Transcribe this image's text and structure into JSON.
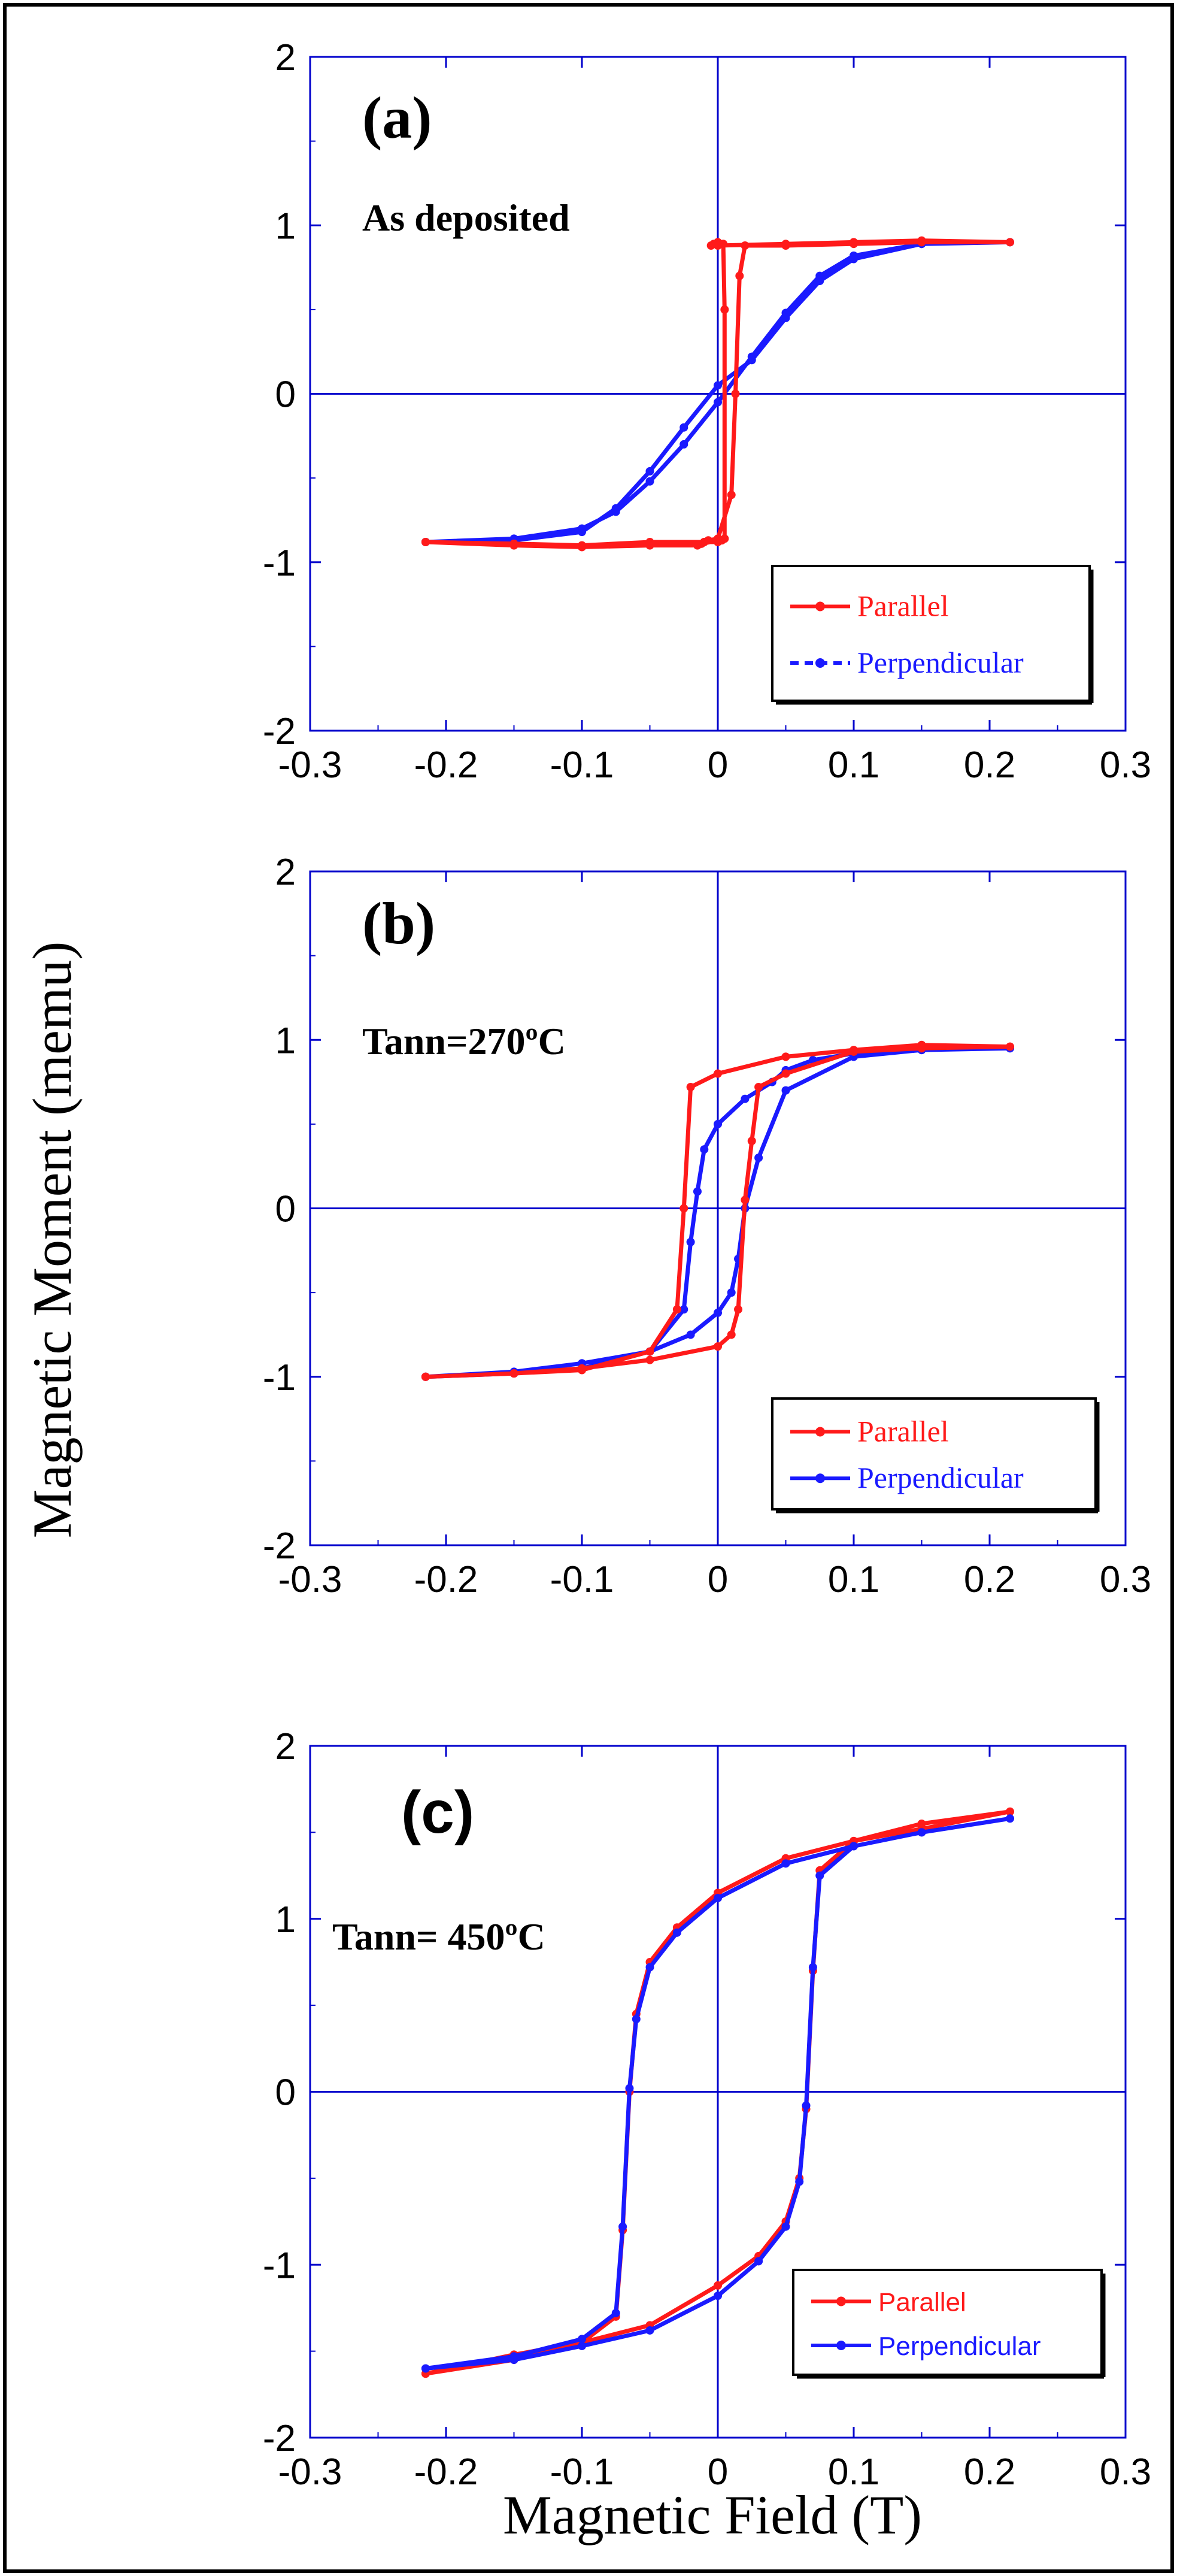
{
  "figure": {
    "ylabel": "Magnetic Moment (memu)",
    "xlabel": "Magnetic Field (T)"
  },
  "colors": {
    "parallel": "#ff1a1a",
    "perpendicular": "#1a1aff",
    "zero_line": "#0000cc",
    "frame": "#000000"
  },
  "chart_data": [
    {
      "type": "line",
      "panel": "(a)",
      "annotation": "As deposited",
      "xlim": [
        -0.3,
        0.3
      ],
      "ylim": [
        -2,
        2
      ],
      "xticks": [
        "-0.3",
        "-0.2",
        "-0.1",
        "0",
        "0.1",
        "0.2",
        "0.3"
      ],
      "yticks": [
        "2",
        "1",
        "0",
        "-1",
        "-2"
      ],
      "grid": false,
      "legend_position": "bottom-right",
      "series": [
        {
          "name": "Parallel",
          "color_key": "parallel",
          "x": [
            -0.215,
            -0.15,
            -0.1,
            -0.05,
            -0.01,
            0.0,
            0.003,
            0.005,
            0.005,
            0.004,
            0.0,
            -0.003,
            -0.005,
            0.0,
            0.05,
            0.1,
            0.15,
            0.215,
            0.15,
            0.1,
            0.05,
            0.02,
            0.016,
            0.013,
            0.01,
            0.0,
            -0.007,
            -0.01,
            -0.012,
            -0.015,
            -0.05,
            -0.1,
            -0.15,
            -0.215
          ],
          "y": [
            -0.88,
            -0.89,
            -0.9,
            -0.88,
            -0.88,
            -0.88,
            -0.87,
            -0.86,
            0.5,
            0.89,
            0.9,
            0.89,
            0.88,
            0.88,
            0.89,
            0.9,
            0.91,
            0.9,
            0.9,
            0.89,
            0.88,
            0.88,
            0.7,
            0.0,
            -0.6,
            -0.86,
            -0.87,
            -0.88,
            -0.89,
            -0.9,
            -0.9,
            -0.91,
            -0.9,
            -0.88
          ]
        },
        {
          "name": "Perpendicular",
          "color_key": "perpendicular",
          "x": [
            -0.215,
            -0.15,
            -0.1,
            -0.075,
            -0.05,
            -0.025,
            0.0,
            0.025,
            0.05,
            0.075,
            0.1,
            0.15,
            0.215,
            0.15,
            0.1,
            0.075,
            0.05,
            0.025,
            0.0,
            -0.025,
            -0.05,
            -0.075,
            -0.1,
            -0.15,
            -0.215
          ],
          "y": [
            -0.88,
            -0.86,
            -0.8,
            -0.7,
            -0.52,
            -0.3,
            -0.05,
            0.22,
            0.48,
            0.7,
            0.82,
            0.89,
            0.9,
            0.89,
            0.8,
            0.67,
            0.45,
            0.2,
            0.05,
            -0.2,
            -0.46,
            -0.68,
            -0.82,
            -0.87,
            -0.88
          ]
        }
      ]
    },
    {
      "type": "line",
      "panel": "(b)",
      "annotation": "Tann=270ºC",
      "xlim": [
        -0.3,
        0.3
      ],
      "ylim": [
        -2,
        2
      ],
      "xticks": [
        "-0.3",
        "-0.2",
        "-0.1",
        "0",
        "0.1",
        "0.2",
        "0.3"
      ],
      "yticks": [
        "2",
        "1",
        "0",
        "-1",
        "-2"
      ],
      "grid": false,
      "legend_position": "bottom-right",
      "series": [
        {
          "name": "Parallel",
          "color_key": "parallel",
          "x": [
            -0.215,
            -0.15,
            -0.1,
            -0.05,
            -0.03,
            -0.025,
            -0.02,
            0.0,
            0.05,
            0.1,
            0.15,
            0.215,
            0.15,
            0.1,
            0.05,
            0.03,
            0.025,
            0.02,
            0.015,
            0.01,
            0.0,
            -0.05,
            -0.1,
            -0.15,
            -0.215
          ],
          "y": [
            -1.0,
            -0.98,
            -0.96,
            -0.85,
            -0.6,
            0.0,
            0.72,
            0.8,
            0.9,
            0.94,
            0.97,
            0.96,
            0.95,
            0.93,
            0.8,
            0.72,
            0.4,
            0.05,
            -0.6,
            -0.75,
            -0.82,
            -0.9,
            -0.95,
            -0.98,
            -1.0
          ]
        },
        {
          "name": "Perpendicular",
          "color_key": "perpendicular",
          "x": [
            -0.215,
            -0.15,
            -0.1,
            -0.05,
            -0.025,
            -0.02,
            -0.015,
            -0.01,
            0.0,
            0.02,
            0.04,
            0.05,
            0.07,
            0.1,
            0.15,
            0.215,
            0.15,
            0.1,
            0.05,
            0.03,
            0.02,
            0.015,
            0.01,
            0.0,
            -0.02,
            -0.05,
            -0.1,
            -0.15,
            -0.215
          ],
          "y": [
            -1.0,
            -0.98,
            -0.95,
            -0.85,
            -0.6,
            -0.2,
            0.1,
            0.35,
            0.5,
            0.65,
            0.75,
            0.82,
            0.88,
            0.92,
            0.94,
            0.95,
            0.94,
            0.9,
            0.7,
            0.3,
            0.0,
            -0.3,
            -0.5,
            -0.62,
            -0.75,
            -0.85,
            -0.92,
            -0.97,
            -1.0
          ]
        }
      ]
    },
    {
      "type": "line",
      "panel": "(c)",
      "annotation": "Tann= 450ºC",
      "xlim": [
        -0.3,
        0.3
      ],
      "ylim": [
        -2,
        2
      ],
      "xticks": [
        "-0.3",
        "-0.2",
        "-0.1",
        "0",
        "0.1",
        "0.2",
        "0.3"
      ],
      "yticks": [
        "2",
        "1",
        "0",
        "-1",
        "-2"
      ],
      "grid": false,
      "legend_position": "bottom-right",
      "series": [
        {
          "name": "Parallel",
          "color_key": "parallel",
          "x": [
            -0.215,
            -0.15,
            -0.1,
            -0.075,
            -0.07,
            -0.065,
            -0.06,
            -0.05,
            -0.03,
            0.0,
            0.05,
            0.1,
            0.15,
            0.215,
            0.15,
            0.1,
            0.075,
            0.07,
            0.065,
            0.06,
            0.05,
            0.03,
            0.0,
            -0.05,
            -0.1,
            -0.15,
            -0.215
          ],
          "y": [
            -1.63,
            -1.55,
            -1.45,
            -1.3,
            -0.8,
            0.0,
            0.45,
            0.75,
            0.95,
            1.15,
            1.35,
            1.45,
            1.52,
            1.62,
            1.55,
            1.45,
            1.28,
            0.7,
            -0.1,
            -0.5,
            -0.75,
            -0.95,
            -1.12,
            -1.35,
            -1.45,
            -1.52,
            -1.63
          ]
        },
        {
          "name": "Perpendicular",
          "color_key": "perpendicular",
          "x": [
            -0.215,
            -0.15,
            -0.1,
            -0.075,
            -0.07,
            -0.065,
            -0.06,
            -0.05,
            -0.03,
            0.0,
            0.05,
            0.1,
            0.15,
            0.215,
            0.15,
            0.1,
            0.075,
            0.07,
            0.065,
            0.06,
            0.05,
            0.03,
            0.0,
            -0.05,
            -0.1,
            -0.15,
            -0.215
          ],
          "y": [
            -1.6,
            -1.53,
            -1.43,
            -1.28,
            -0.78,
            0.02,
            0.42,
            0.72,
            0.92,
            1.12,
            1.32,
            1.42,
            1.5,
            1.58,
            1.5,
            1.42,
            1.25,
            0.72,
            -0.08,
            -0.52,
            -0.78,
            -0.98,
            -1.18,
            -1.38,
            -1.47,
            -1.55,
            -1.6
          ]
        }
      ]
    }
  ]
}
